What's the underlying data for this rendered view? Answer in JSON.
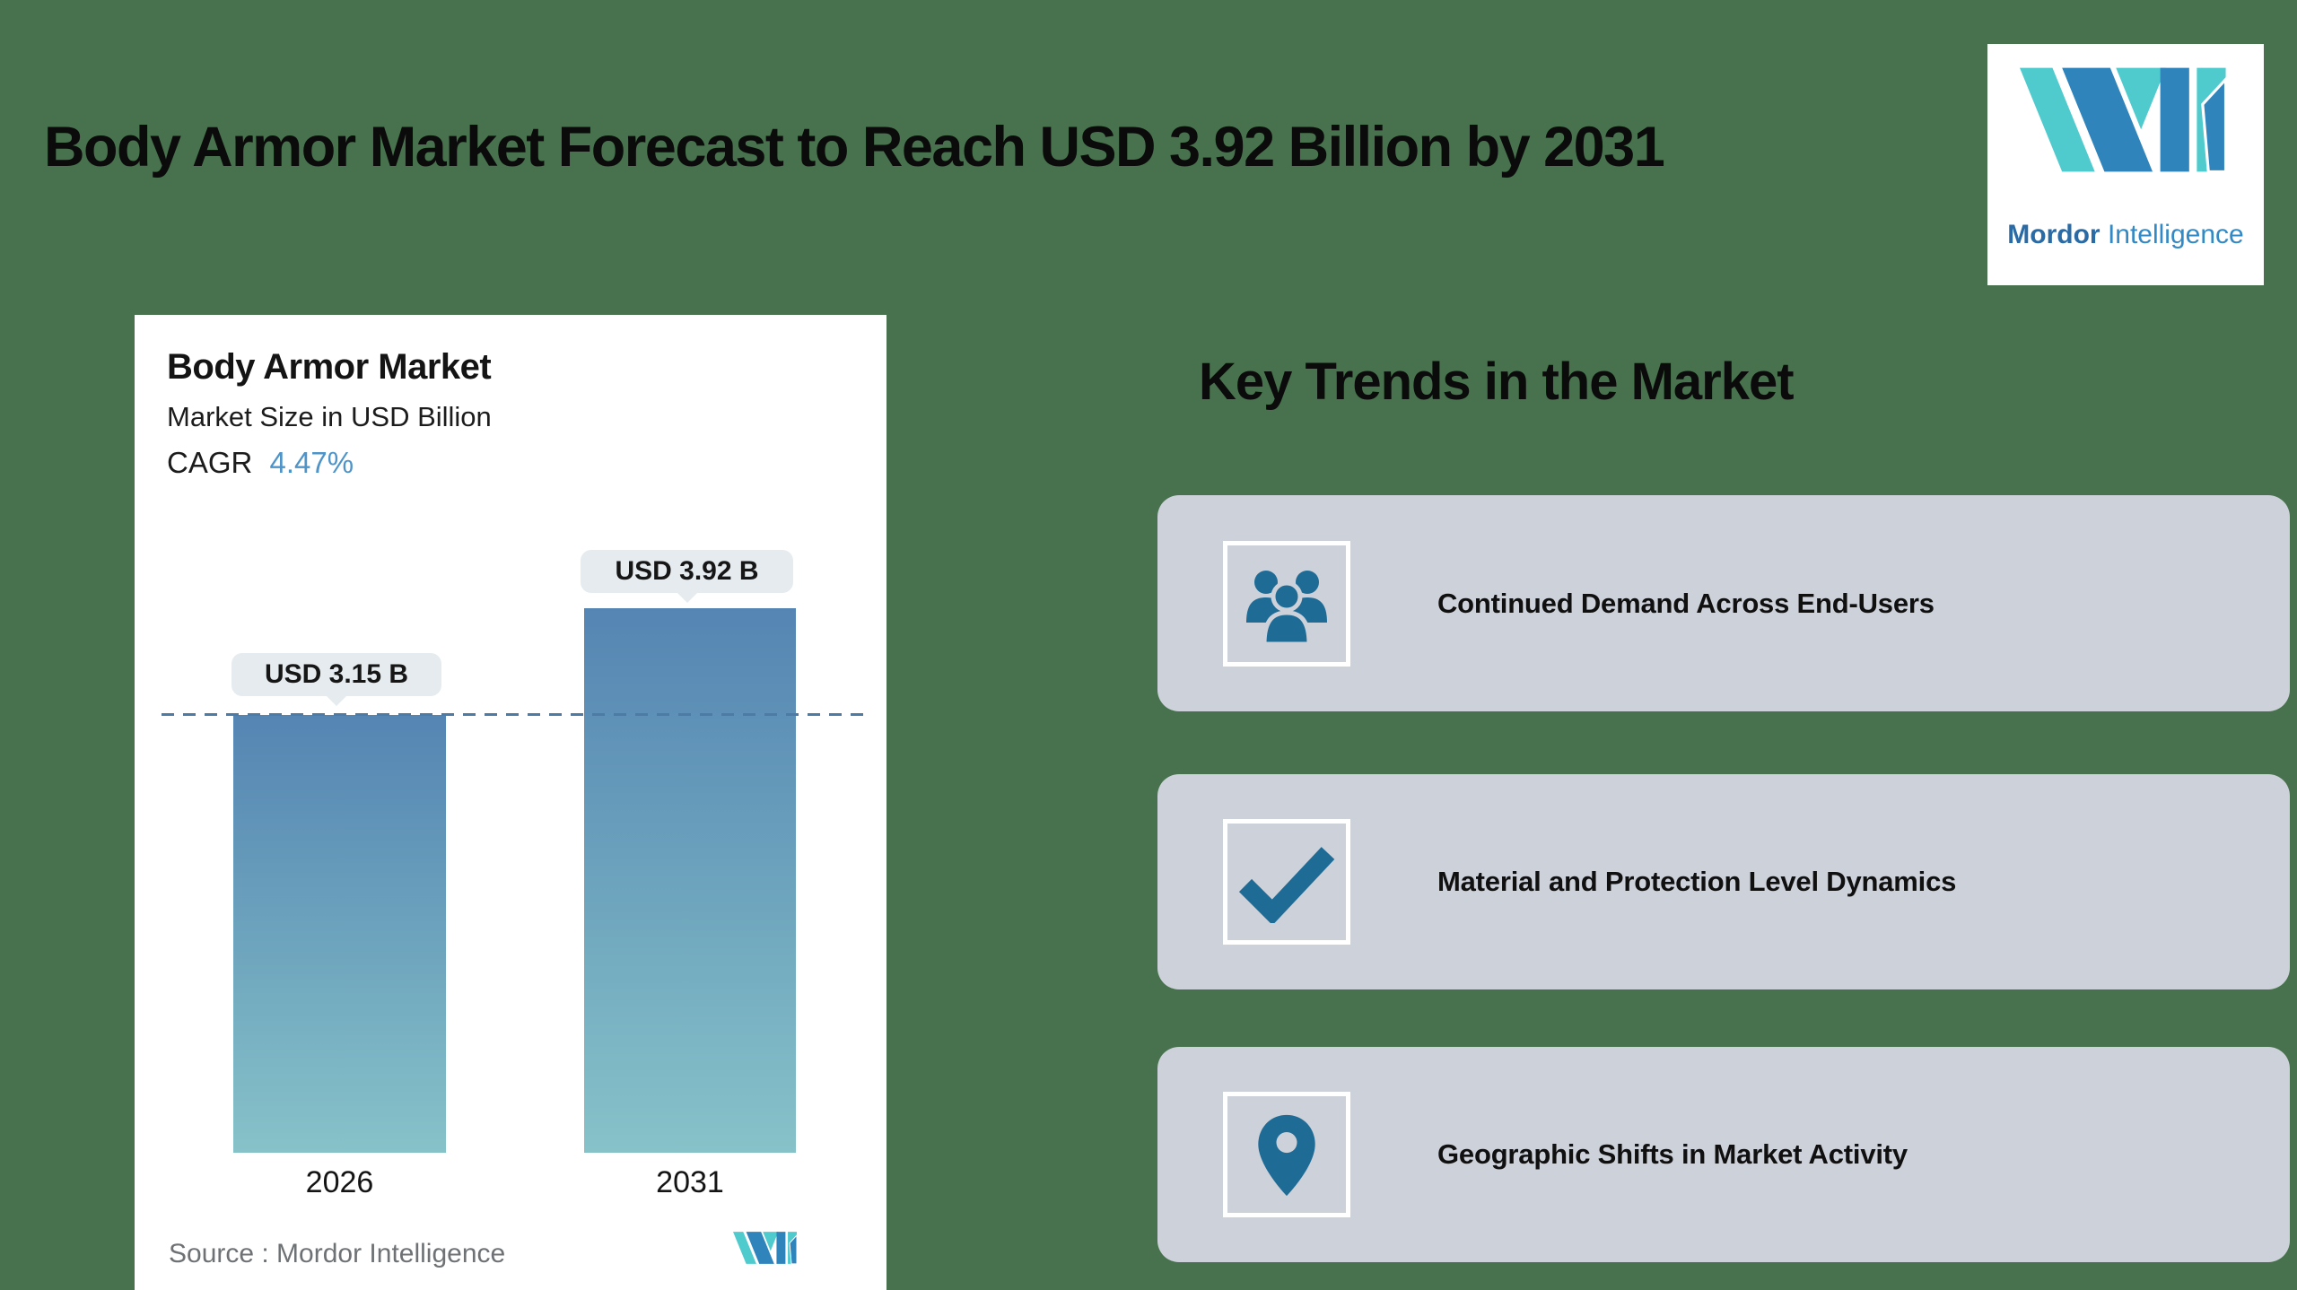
{
  "header": {
    "title": "Body Armor Market Forecast to Reach USD 3.92 Billion by 2031"
  },
  "logo": {
    "brand_bold": "Mordor",
    "brand_regular": "Intelligence"
  },
  "chart_data": {
    "type": "bar",
    "title": "Body Armor Market",
    "subtitle": "Market Size in USD Billion",
    "cagr_label": "CAGR",
    "cagr_value": "4.47%",
    "categories": [
      "2026",
      "2031"
    ],
    "values": [
      3.15,
      3.92
    ],
    "data_labels": [
      "USD 3.15 B",
      "USD 3.92 B"
    ],
    "reference_line_value": 3.15,
    "source": "Source :  Mordor Intelligence",
    "ylim": [
      0,
      3.92
    ],
    "grid": "off",
    "bar_gradient": [
      "#5585b3",
      "#87c2c9"
    ]
  },
  "trends": {
    "heading": "Key Trends in the Market",
    "items": [
      {
        "icon": "people-icon",
        "label": "Continued Demand Across End-Users"
      },
      {
        "icon": "check-icon",
        "label": "Material and Protection Level Dynamics"
      },
      {
        "icon": "pin-icon",
        "label": "Geographic Shifts in Market Activity"
      }
    ]
  },
  "colors": {
    "background": "#47724d",
    "card_gray": "#cdd1d9",
    "icon_blue": "#1e6b96",
    "cagr_blue": "#4e94c9",
    "dashed_line": "#4d7ba6",
    "tooltip_bg": "#e5ebee",
    "logo_blue": "#2f84bc",
    "logo_teal": "#4fcbce",
    "source_gray": "#6e7275"
  }
}
